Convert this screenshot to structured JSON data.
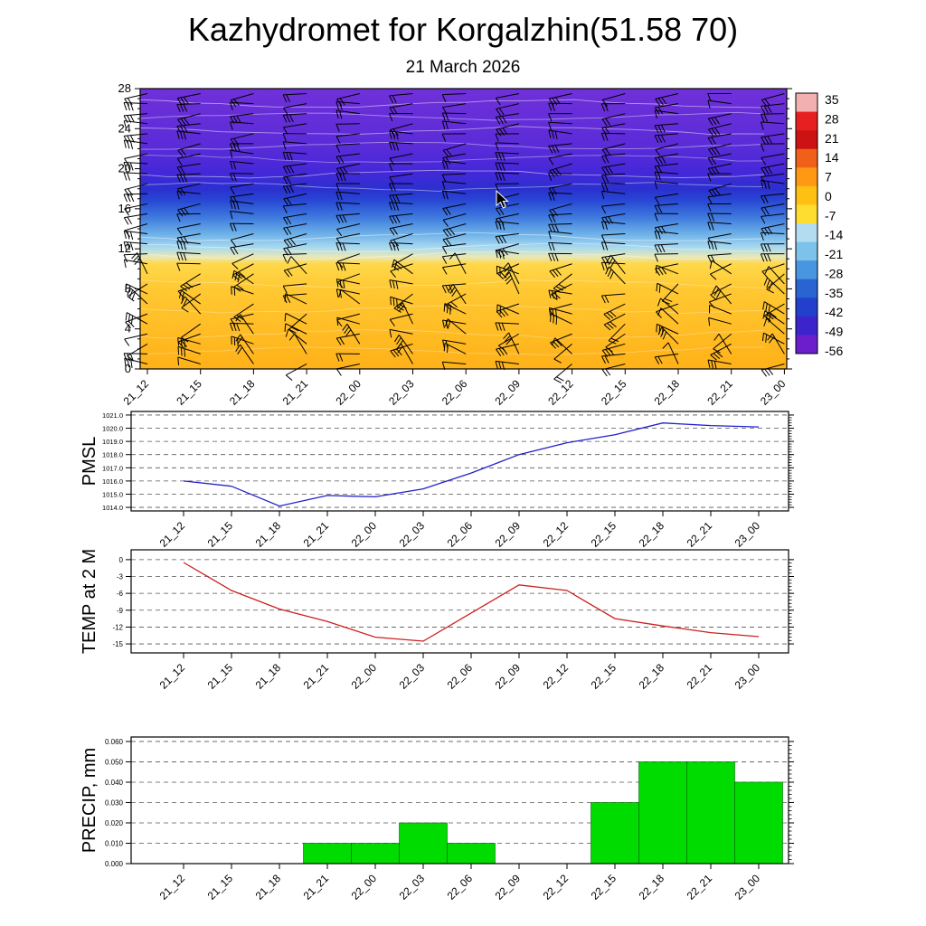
{
  "header": {
    "title": "Kazhydromet for Korgalzhin(51.58 70)",
    "subtitle": "21 March 2026"
  },
  "time_labels": [
    "21_12",
    "21_15",
    "21_18",
    "21_21",
    "22_00",
    "22_03",
    "22_06",
    "22_09",
    "22_12",
    "22_15",
    "22_18",
    "22_21",
    "23_00"
  ],
  "chart_data": [
    {
      "id": "cross-section",
      "type": "heatmap",
      "description": "Time-height cross section of temperature (shaded) with wind barbs and white contour lines",
      "ylim": [
        0,
        28
      ],
      "ytick_labels": [
        "28",
        "24",
        "20",
        "16",
        "12",
        "8",
        "4",
        "0"
      ],
      "categories": [
        "21_12",
        "21_15",
        "21_18",
        "21_21",
        "22_00",
        "22_03",
        "22_06",
        "22_09",
        "22_12",
        "22_15",
        "22_18",
        "22_21",
        "23_00"
      ],
      "features": [
        "wind-barbs",
        "white-contour-lines"
      ],
      "fill_bands": [
        {
          "pos": 0.0,
          "color": "#7030d8"
        },
        {
          "pos": 0.2,
          "color": "#5b2cd8"
        },
        {
          "pos": 0.3,
          "color": "#4428d8"
        },
        {
          "pos": 0.36,
          "color": "#2a30d0"
        },
        {
          "pos": 0.4,
          "color": "#2848d4"
        },
        {
          "pos": 0.46,
          "color": "#3f7ade"
        },
        {
          "pos": 0.52,
          "color": "#6fb2e8"
        },
        {
          "pos": 0.565,
          "color": "#a6d8f0"
        },
        {
          "pos": 0.6,
          "color": "#e8e8b8"
        },
        {
          "pos": 0.625,
          "color": "#ffd84a"
        },
        {
          "pos": 0.72,
          "color": "#ffc832"
        },
        {
          "pos": 1.0,
          "color": "#ffb118"
        }
      ],
      "colorbar": {
        "tick_labels": [
          "35",
          "28",
          "21",
          "14",
          "7",
          "0",
          "-7",
          "-14",
          "-21",
          "-28",
          "-35",
          "-42",
          "-49",
          "-56"
        ],
        "colors": [
          "#f2b0b0",
          "#e62020",
          "#cc1212",
          "#f06018",
          "#ff9914",
          "#ffc014",
          "#ffdc30",
          "#b4dcf0",
          "#7cc2ea",
          "#4896e0",
          "#2a64d2",
          "#2340cc",
          "#3c24cc",
          "#6c1ecc"
        ]
      }
    },
    {
      "id": "pmsl",
      "type": "line",
      "ylabel": "PMSL",
      "color": "#2020cc",
      "ylim": [
        1014.0,
        1021.0
      ],
      "ytick_labels": [
        "1021.0",
        "1020.0",
        "1019.0",
        "1018.0",
        "1017.0",
        "1016.0",
        "1015.0",
        "1014.0"
      ],
      "categories": [
        "21_12",
        "21_15",
        "21_18",
        "21_21",
        "22_00",
        "22_03",
        "22_06",
        "22_09",
        "22_12",
        "22_15",
        "22_18",
        "22_21",
        "23_00"
      ],
      "values": [
        1016.0,
        1015.6,
        1014.1,
        1014.9,
        1014.8,
        1015.4,
        1016.6,
        1018.0,
        1018.9,
        1019.5,
        1020.4,
        1020.2,
        1020.1
      ]
    },
    {
      "id": "temp2m",
      "type": "line",
      "ylabel": "TEMP at 2 M",
      "color": "#cc2020",
      "ylim": [
        -15,
        0
      ],
      "ytick_labels": [
        "0",
        "-3",
        "-6",
        "-9",
        "-12",
        "-15"
      ],
      "categories": [
        "21_12",
        "21_15",
        "21_18",
        "21_21",
        "22_00",
        "22_03",
        "22_06",
        "22_09",
        "22_12",
        "22_15",
        "22_18",
        "22_21",
        "23_00"
      ],
      "values": [
        -0.5,
        -5.5,
        -8.8,
        -11.0,
        -13.8,
        -14.5,
        -9.5,
        -4.5,
        -5.5,
        -10.5,
        -11.8,
        -13.0,
        -13.7
      ]
    },
    {
      "id": "precip",
      "type": "bar",
      "ylabel": "PRECIP, mm",
      "color": "#00dc00",
      "ylim": [
        0,
        0.06
      ],
      "ytick_labels": [
        "0.060",
        "0.050",
        "0.040",
        "0.030",
        "0.020",
        "0.010",
        "0.000"
      ],
      "categories": [
        "21_12",
        "21_15",
        "21_18",
        "21_21",
        "22_00",
        "22_03",
        "22_06",
        "22_09",
        "22_12",
        "22_15",
        "22_18",
        "22_21",
        "23_00"
      ],
      "values": [
        0,
        0,
        0,
        0.01,
        0.01,
        0.02,
        0.01,
        0,
        0,
        0.03,
        0.05,
        0.05,
        0.04
      ]
    }
  ]
}
